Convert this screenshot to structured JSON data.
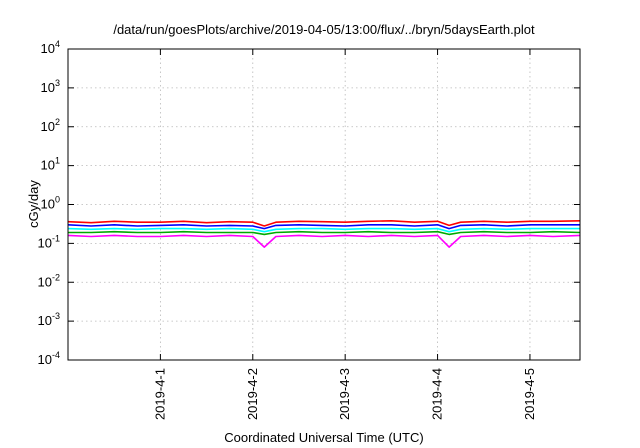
{
  "chart_data": {
    "type": "line",
    "title": "/data/run/goesPlots/archive/2019-04-05/13:00/flux/../bryn/5daysEarth.plot",
    "xlabel": "Coordinated Universal Time (UTC)",
    "ylabel": "cGy/day",
    "yscale": "log",
    "ylim": [
      0.0001,
      10000
    ],
    "y_ticks": [
      {
        "value": 0.0001,
        "base": "10",
        "exp": "-4"
      },
      {
        "value": 0.001,
        "base": "10",
        "exp": "-3"
      },
      {
        "value": 0.01,
        "base": "10",
        "exp": "-2"
      },
      {
        "value": 0.1,
        "base": "10",
        "exp": "-1"
      },
      {
        "value": 1,
        "base": "10",
        "exp": "0"
      },
      {
        "value": 10,
        "base": "10",
        "exp": "1"
      },
      {
        "value": 100,
        "base": "10",
        "exp": "2"
      },
      {
        "value": 1000,
        "base": "10",
        "exp": "3"
      },
      {
        "value": 10000,
        "base": "10",
        "exp": "4"
      }
    ],
    "xlim": [
      "2019-03-31T00:00",
      "2019-04-05T13:00"
    ],
    "x_ticks": [
      {
        "value": "2019-04-01T00:00",
        "label": "2019-4-1"
      },
      {
        "value": "2019-04-02T00:00",
        "label": "2019-4-2"
      },
      {
        "value": "2019-04-03T00:00",
        "label": "2019-4-3"
      },
      {
        "value": "2019-04-04T00:00",
        "label": "2019-4-4"
      },
      {
        "value": "2019-04-05T00:00",
        "label": "2019-4-5"
      }
    ],
    "grid": true,
    "x": [
      "2019-03-31T00:00",
      "2019-03-31T06:00",
      "2019-03-31T12:00",
      "2019-03-31T18:00",
      "2019-04-01T00:00",
      "2019-04-01T06:00",
      "2019-04-01T12:00",
      "2019-04-01T18:00",
      "2019-04-02T00:00",
      "2019-04-02T03:00",
      "2019-04-02T06:00",
      "2019-04-02T12:00",
      "2019-04-02T18:00",
      "2019-04-03T00:00",
      "2019-04-03T06:00",
      "2019-04-03T12:00",
      "2019-04-03T18:00",
      "2019-04-04T00:00",
      "2019-04-04T03:00",
      "2019-04-04T06:00",
      "2019-04-04T12:00",
      "2019-04-04T18:00",
      "2019-04-05T00:00",
      "2019-04-05T06:00",
      "2019-04-05T13:00"
    ],
    "series": [
      {
        "color": "#ff00ff",
        "values": [
          0.16,
          0.15,
          0.16,
          0.15,
          0.15,
          0.16,
          0.15,
          0.16,
          0.15,
          0.08,
          0.15,
          0.16,
          0.15,
          0.16,
          0.15,
          0.16,
          0.15,
          0.16,
          0.08,
          0.15,
          0.16,
          0.15,
          0.16,
          0.15,
          0.16
        ]
      },
      {
        "color": "#00aa00",
        "values": [
          0.19,
          0.19,
          0.2,
          0.19,
          0.19,
          0.2,
          0.19,
          0.19,
          0.19,
          0.17,
          0.19,
          0.2,
          0.19,
          0.19,
          0.2,
          0.19,
          0.19,
          0.2,
          0.17,
          0.19,
          0.2,
          0.19,
          0.19,
          0.2,
          0.19
        ]
      },
      {
        "color": "#00ffff",
        "values": [
          0.24,
          0.23,
          0.24,
          0.23,
          0.24,
          0.24,
          0.23,
          0.24,
          0.23,
          0.2,
          0.23,
          0.24,
          0.24,
          0.23,
          0.24,
          0.24,
          0.23,
          0.24,
          0.2,
          0.23,
          0.24,
          0.23,
          0.24,
          0.24,
          0.24
        ]
      },
      {
        "color": "#0000ff",
        "values": [
          0.3,
          0.28,
          0.3,
          0.28,
          0.29,
          0.3,
          0.28,
          0.29,
          0.28,
          0.24,
          0.29,
          0.3,
          0.29,
          0.28,
          0.3,
          0.3,
          0.28,
          0.3,
          0.24,
          0.29,
          0.3,
          0.28,
          0.3,
          0.3,
          0.3
        ]
      },
      {
        "color": "#ff0000",
        "values": [
          0.36,
          0.34,
          0.37,
          0.35,
          0.35,
          0.37,
          0.34,
          0.36,
          0.35,
          0.28,
          0.35,
          0.37,
          0.36,
          0.35,
          0.37,
          0.38,
          0.35,
          0.37,
          0.29,
          0.35,
          0.37,
          0.35,
          0.37,
          0.37,
          0.38
        ]
      }
    ]
  }
}
